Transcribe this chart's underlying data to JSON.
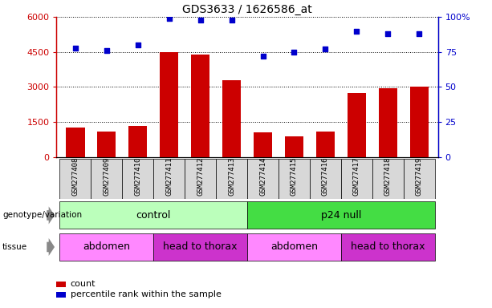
{
  "title": "GDS3633 / 1626586_at",
  "samples": [
    "GSM277408",
    "GSM277409",
    "GSM277410",
    "GSM277411",
    "GSM277412",
    "GSM277413",
    "GSM277414",
    "GSM277415",
    "GSM277416",
    "GSM277417",
    "GSM277418",
    "GSM277419"
  ],
  "counts": [
    1250,
    1100,
    1350,
    4480,
    4380,
    3280,
    1050,
    900,
    1100,
    2750,
    2950,
    3020
  ],
  "percentile_ranks": [
    78,
    76,
    80,
    99,
    98,
    98,
    72,
    75,
    77,
    90,
    88,
    88
  ],
  "ylim_left": [
    0,
    6000
  ],
  "ylim_right": [
    0,
    100
  ],
  "yticks_left": [
    0,
    1500,
    3000,
    4500,
    6000
  ],
  "yticks_right": [
    0,
    25,
    50,
    75,
    100
  ],
  "bar_color": "#cc0000",
  "dot_color": "#0000cc",
  "bar_width": 0.6,
  "genotype_groups": [
    {
      "label": "control",
      "start": 0,
      "end": 6,
      "color": "#bbffbb"
    },
    {
      "label": "p24 null",
      "start": 6,
      "end": 12,
      "color": "#44dd44"
    }
  ],
  "tissue_groups": [
    {
      "label": "abdomen",
      "start": 0,
      "end": 3,
      "color": "#ff88ff"
    },
    {
      "label": "head to thorax",
      "start": 3,
      "end": 6,
      "color": "#cc33cc"
    },
    {
      "label": "abdomen",
      "start": 6,
      "end": 9,
      "color": "#ff88ff"
    },
    {
      "label": "head to thorax",
      "start": 9,
      "end": 12,
      "color": "#cc33cc"
    }
  ],
  "left_axis_color": "#cc0000",
  "right_axis_color": "#0000cc",
  "label_genotype": "genotype/variation",
  "label_tissue": "tissue",
  "legend_count_label": "count",
  "legend_pct_label": "percentile rank within the sample"
}
